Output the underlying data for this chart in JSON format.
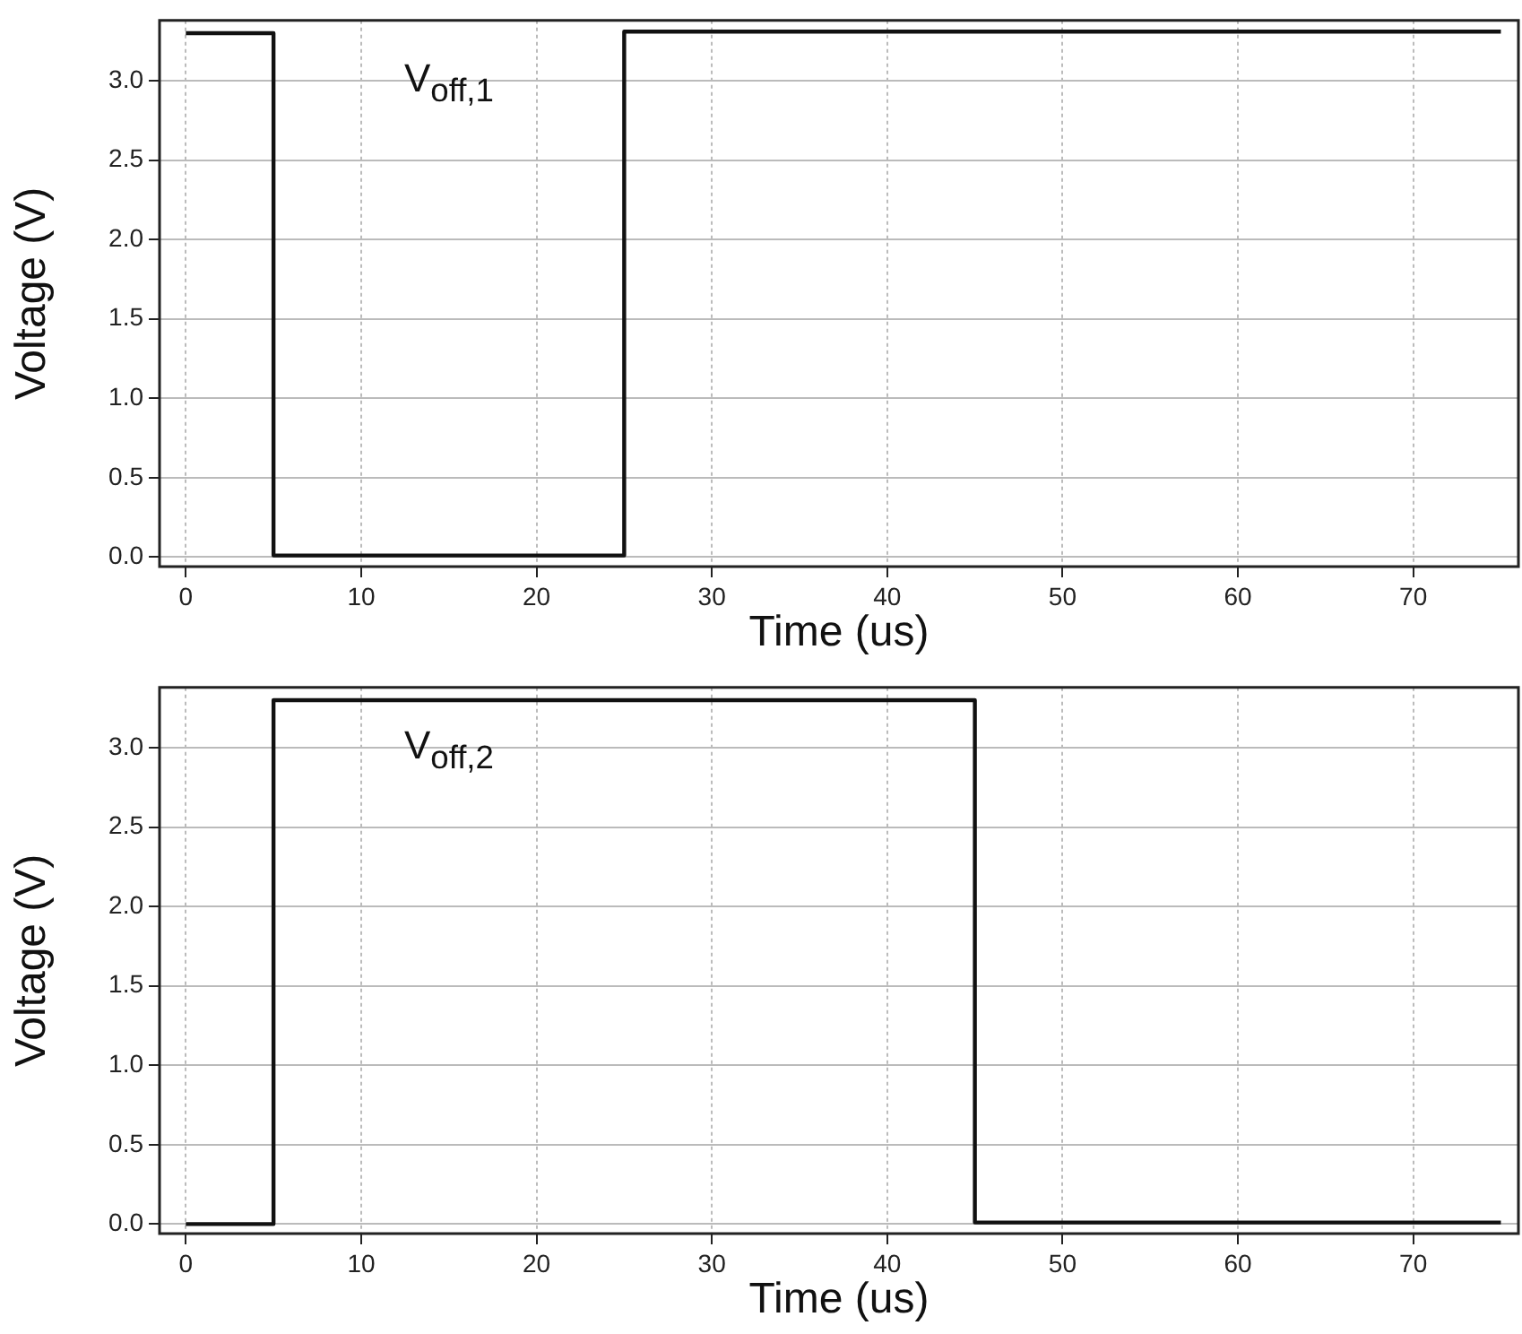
{
  "chart_data": [
    {
      "type": "line",
      "xlabel": "Time (us)",
      "ylabel": "Voltage (V)",
      "xlim": [
        -1.5,
        76
      ],
      "ylim": [
        -0.06,
        3.38
      ],
      "xticks": [
        0,
        10,
        20,
        30,
        40,
        50,
        60,
        70
      ],
      "yticks": [
        {
          "value": 0,
          "label": "0.0"
        },
        0.5,
        {
          "value": 1,
          "label": "1.0"
        },
        1.5,
        {
          "value": 2,
          "label": "2.0"
        },
        2.5,
        {
          "value": 3,
          "label": "3.0"
        }
      ],
      "grid": true,
      "legend": false,
      "marker": "none",
      "line_style": "solid",
      "series": [
        {
          "name": "V$_{off,1}$",
          "color": "#111111",
          "x": [
            0,
            5,
            5,
            25,
            25,
            75
          ],
          "values": [
            3.3,
            3.3,
            0.01,
            0.01,
            3.31,
            3.31
          ]
        }
      ]
    },
    {
      "type": "line",
      "xlabel": "Time (us)",
      "ylabel": "Voltage (V)",
      "xlim": [
        -1.5,
        76
      ],
      "ylim": [
        -0.06,
        3.38
      ],
      "xticks": [
        0,
        10,
        20,
        30,
        40,
        50,
        60,
        70
      ],
      "yticks": [
        {
          "value": 0,
          "label": "0.0"
        },
        0.5,
        {
          "value": 1,
          "label": "1.0"
        },
        1.5,
        {
          "value": 2,
          "label": "2.0"
        },
        2.5,
        {
          "value": 3,
          "label": "3.0"
        }
      ],
      "grid": true,
      "legend": false,
      "marker": "none",
      "line_style": "solid",
      "series": [
        {
          "name": "V$_{off,2}$",
          "color": "#111111",
          "x": [
            0,
            5,
            5,
            45,
            45,
            75
          ],
          "values": [
            0.0,
            0.0,
            3.3,
            3.3,
            0.01,
            0.01
          ]
        }
      ]
    }
  ]
}
